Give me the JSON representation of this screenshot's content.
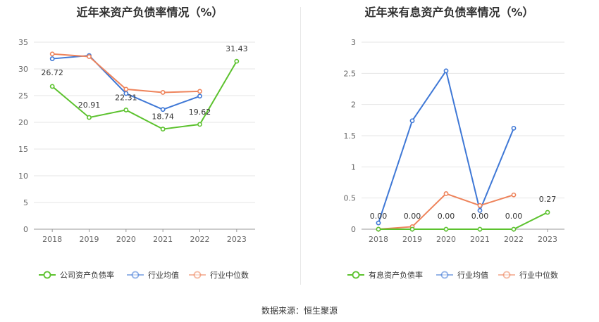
{
  "source_label": "数据来源：恒生聚源",
  "chart_data": [
    {
      "type": "line",
      "title": "近年来资产负债率情况（%）",
      "categories": [
        "2018",
        "2019",
        "2020",
        "2021",
        "2022",
        "2023"
      ],
      "ylim": [
        0,
        35
      ],
      "yticks": [
        0,
        5,
        10,
        15,
        20,
        25,
        30,
        35
      ],
      "grid": true,
      "legend_position": "bottom",
      "series": [
        {
          "name": "公司资产负债率",
          "color": "#5cc22e",
          "values": [
            26.72,
            20.91,
            22.31,
            18.74,
            19.62,
            31.43
          ],
          "labels": [
            "26.72",
            "20.91",
            "22.31",
            "18.74",
            "19.62",
            "31.43"
          ]
        },
        {
          "name": "行业均值",
          "color": "#3f78d6",
          "values": [
            31.9,
            32.5,
            25.4,
            22.4,
            24.9,
            null
          ]
        },
        {
          "name": "行业中位数",
          "color": "#ee845c",
          "values": [
            32.8,
            32.3,
            26.2,
            25.6,
            25.8,
            null
          ]
        }
      ]
    },
    {
      "type": "line",
      "title": "近年来有息资产负债率情况（%）",
      "categories": [
        "2018",
        "2019",
        "2020",
        "2021",
        "2022",
        "2023"
      ],
      "ylim": [
        0,
        3
      ],
      "yticks": [
        0,
        0.5,
        1,
        1.5,
        2,
        2.5,
        3
      ],
      "grid": true,
      "legend_position": "bottom",
      "series": [
        {
          "name": "有息资产负债率",
          "color": "#5cc22e",
          "values": [
            0.0,
            0.0,
            0.0,
            0.0,
            0.0,
            0.27
          ],
          "labels": [
            "0.00",
            "0.00",
            "0.00",
            "0.00",
            "0.00",
            "0.27"
          ]
        },
        {
          "name": "行业均值",
          "color": "#3f78d6",
          "values": [
            0.1,
            1.74,
            2.54,
            0.3,
            1.62,
            null
          ]
        },
        {
          "name": "行业中位数",
          "color": "#ee845c",
          "values": [
            0.0,
            0.04,
            0.57,
            0.38,
            0.55,
            null
          ]
        }
      ]
    }
  ]
}
